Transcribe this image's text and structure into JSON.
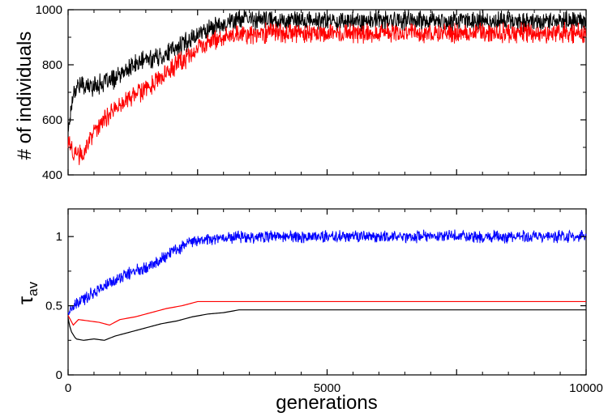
{
  "chart_data": [
    {
      "type": "line",
      "title": "",
      "xlabel": "",
      "ylabel": "# of individuals",
      "xlim": [
        0,
        10000
      ],
      "ylim": [
        400,
        1000
      ],
      "yticks": [
        400,
        600,
        800,
        1000
      ],
      "ytick_labels": [
        "400",
        "600",
        "800",
        "1000"
      ],
      "xticks": [
        0,
        2500,
        5000,
        7500,
        10000
      ],
      "xtick_labels": [],
      "grid": false,
      "legend": "none",
      "series": [
        {
          "color": "#000000",
          "noise": 28,
          "x": [
            0,
            100,
            200,
            400,
            600,
            800,
            1000,
            1200,
            1500,
            1800,
            2100,
            2400,
            2700,
            3000,
            3300,
            3600,
            4000,
            5000,
            6000,
            7000,
            8000,
            9000,
            10000
          ],
          "values": [
            560,
            700,
            730,
            720,
            730,
            740,
            760,
            790,
            820,
            830,
            860,
            900,
            930,
            950,
            965,
            965,
            960,
            960,
            960,
            960,
            960,
            960,
            960
          ]
        },
        {
          "color": "#ff0000",
          "noise": 28,
          "x": [
            0,
            100,
            200,
            300,
            500,
            700,
            900,
            1200,
            1500,
            1800,
            2100,
            2400,
            2700,
            3000,
            3300,
            3600,
            4000,
            5000,
            6000,
            7000,
            8000,
            9000,
            10000
          ],
          "values": [
            520,
            480,
            470,
            480,
            560,
            600,
            640,
            680,
            710,
            750,
            800,
            840,
            880,
            900,
            910,
            915,
            915,
            915,
            915,
            915,
            915,
            915,
            915
          ]
        }
      ]
    },
    {
      "type": "line",
      "title": "",
      "xlabel": "generations",
      "ylabel": "τav",
      "ylabel_main": "τ",
      "ylabel_sub": "av",
      "xlim": [
        0,
        10000
      ],
      "ylim": [
        0,
        1.2
      ],
      "yticks": [
        0,
        0.5,
        1
      ],
      "ytick_labels": [
        "0",
        "0.5",
        "1"
      ],
      "xticks": [
        0,
        2500,
        5000,
        7500,
        10000
      ],
      "xtick_labels": [
        "0",
        "",
        "5000",
        "",
        "10000"
      ],
      "grid": false,
      "legend": "none",
      "series": [
        {
          "color": "#0000ff",
          "noise": 0.035,
          "x": [
            0,
            200,
            500,
            800,
            1100,
            1400,
            1700,
            2000,
            2300,
            2600,
            2900,
            3200,
            3500,
            4000,
            5000,
            6000,
            7000,
            8000,
            9000,
            10000
          ],
          "values": [
            0.45,
            0.52,
            0.6,
            0.66,
            0.72,
            0.77,
            0.81,
            0.89,
            0.95,
            0.98,
            0.99,
            1.0,
            1.0,
            1.0,
            1.0,
            1.0,
            1.0,
            1.0,
            1.0,
            1.0
          ]
        },
        {
          "color": "#ff0000",
          "noise": 0,
          "x": [
            0,
            100,
            200,
            400,
            600,
            800,
            1000,
            1300,
            1600,
            1900,
            2200,
            2500,
            3000,
            4000,
            5000,
            6000,
            7000,
            8000,
            9000,
            10000
          ],
          "values": [
            0.43,
            0.36,
            0.4,
            0.39,
            0.38,
            0.36,
            0.4,
            0.42,
            0.45,
            0.48,
            0.5,
            0.53,
            0.53,
            0.53,
            0.53,
            0.53,
            0.53,
            0.53,
            0.53,
            0.53
          ]
        },
        {
          "color": "#000000",
          "noise": 0,
          "x": [
            0,
            50,
            150,
            300,
            500,
            700,
            900,
            1200,
            1500,
            1800,
            2100,
            2400,
            2700,
            3000,
            3300,
            4000,
            5000,
            6000,
            7000,
            8000,
            9000,
            10000
          ],
          "values": [
            0.41,
            0.32,
            0.26,
            0.25,
            0.26,
            0.25,
            0.28,
            0.31,
            0.34,
            0.37,
            0.39,
            0.42,
            0.44,
            0.45,
            0.47,
            0.47,
            0.47,
            0.47,
            0.47,
            0.47,
            0.47,
            0.47
          ]
        }
      ]
    }
  ]
}
